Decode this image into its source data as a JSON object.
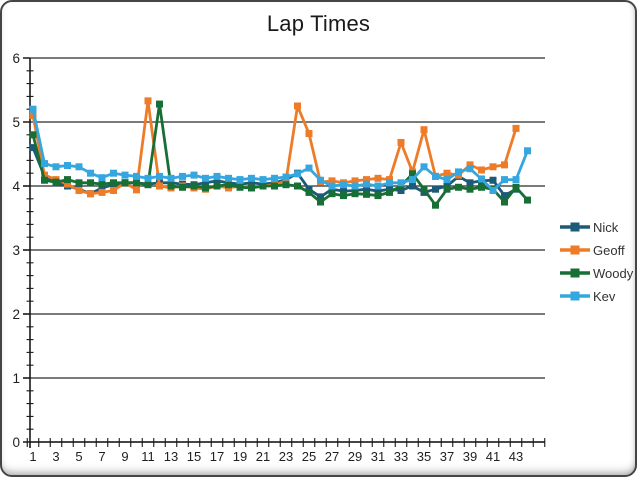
{
  "window": {
    "border_color": "#454545",
    "background": "#ffffff"
  },
  "chart_data": {
    "type": "line",
    "title": "Lap Times",
    "xlabel": "",
    "ylabel": "",
    "ylim": [
      0,
      6
    ],
    "y_major_ticks": [
      0,
      1,
      2,
      3,
      4,
      5,
      6
    ],
    "y_minor_step": 0.2,
    "x_range_laps": [
      1,
      44
    ],
    "x_tick_labels": [
      "1",
      "3",
      "5",
      "7",
      "9",
      "11",
      "13",
      "15",
      "17",
      "19",
      "21",
      "23",
      "25",
      "27",
      "29",
      "31",
      "33",
      "35",
      "37",
      "39",
      "41",
      "43"
    ],
    "grid": "horizontal-major-black",
    "legend_position": "right",
    "marker": "square",
    "axis_label_color": "#1f1f1f",
    "gridline_color": "#2b2b2b",
    "series": [
      {
        "name": "Nick",
        "color": "#1D5A78",
        "values": [
          4.6,
          4.15,
          4.05,
          4.0,
          3.95,
          3.88,
          3.97,
          4.02,
          4.05,
          4.05,
          4.03,
          4.05,
          4.05,
          4.03,
          4.02,
          4.05,
          4.08,
          4.05,
          4.03,
          4.05,
          4.03,
          4.05,
          4.1,
          4.2,
          3.95,
          3.83,
          3.95,
          3.92,
          3.93,
          3.95,
          3.92,
          3.95,
          3.93,
          4.0,
          3.9,
          3.95,
          4.0,
          4.15,
          4.05,
          4.08,
          4.09,
          3.85,
          3.95
        ]
      },
      {
        "name": "Geoff",
        "color": "#EE7B28",
        "values": [
          5.1,
          4.17,
          4.1,
          4.03,
          3.93,
          3.88,
          3.9,
          3.93,
          4.05,
          3.94,
          5.33,
          4.0,
          3.97,
          4.0,
          3.97,
          3.95,
          4.0,
          3.97,
          4.0,
          3.97,
          4.0,
          4.02,
          4.08,
          5.25,
          4.82,
          4.06,
          4.08,
          4.05,
          4.08,
          4.1,
          4.12,
          4.1,
          4.68,
          4.22,
          4.88,
          4.15,
          4.2,
          4.17,
          4.33,
          4.25,
          4.3,
          4.33,
          4.9
        ]
      },
      {
        "name": "Woody",
        "color": "#186F35",
        "values": [
          4.8,
          4.09,
          4.06,
          4.1,
          4.05,
          4.05,
          4.03,
          4.05,
          4.05,
          4.05,
          4.02,
          5.28,
          4.0,
          3.98,
          4.0,
          3.97,
          4.0,
          4.02,
          3.98,
          3.97,
          4.0,
          4.0,
          4.02,
          4.0,
          3.9,
          3.75,
          3.88,
          3.85,
          3.88,
          3.87,
          3.85,
          3.9,
          4.0,
          4.19,
          3.95,
          3.7,
          3.95,
          3.98,
          3.95,
          3.98,
          3.95,
          3.75,
          3.98,
          3.78
        ]
      },
      {
        "name": "Kev",
        "color": "#35A7DE",
        "values": [
          5.2,
          4.35,
          4.3,
          4.32,
          4.3,
          4.2,
          4.13,
          4.2,
          4.17,
          4.15,
          4.12,
          4.15,
          4.12,
          4.15,
          4.17,
          4.12,
          4.15,
          4.12,
          4.1,
          4.12,
          4.1,
          4.12,
          4.14,
          4.19,
          4.28,
          4.09,
          4.0,
          4.02,
          4.0,
          4.03,
          4.0,
          4.05,
          4.05,
          4.1,
          4.3,
          4.15,
          4.1,
          4.22,
          4.27,
          4.11,
          3.93,
          4.1,
          4.1,
          4.55
        ]
      }
    ]
  }
}
